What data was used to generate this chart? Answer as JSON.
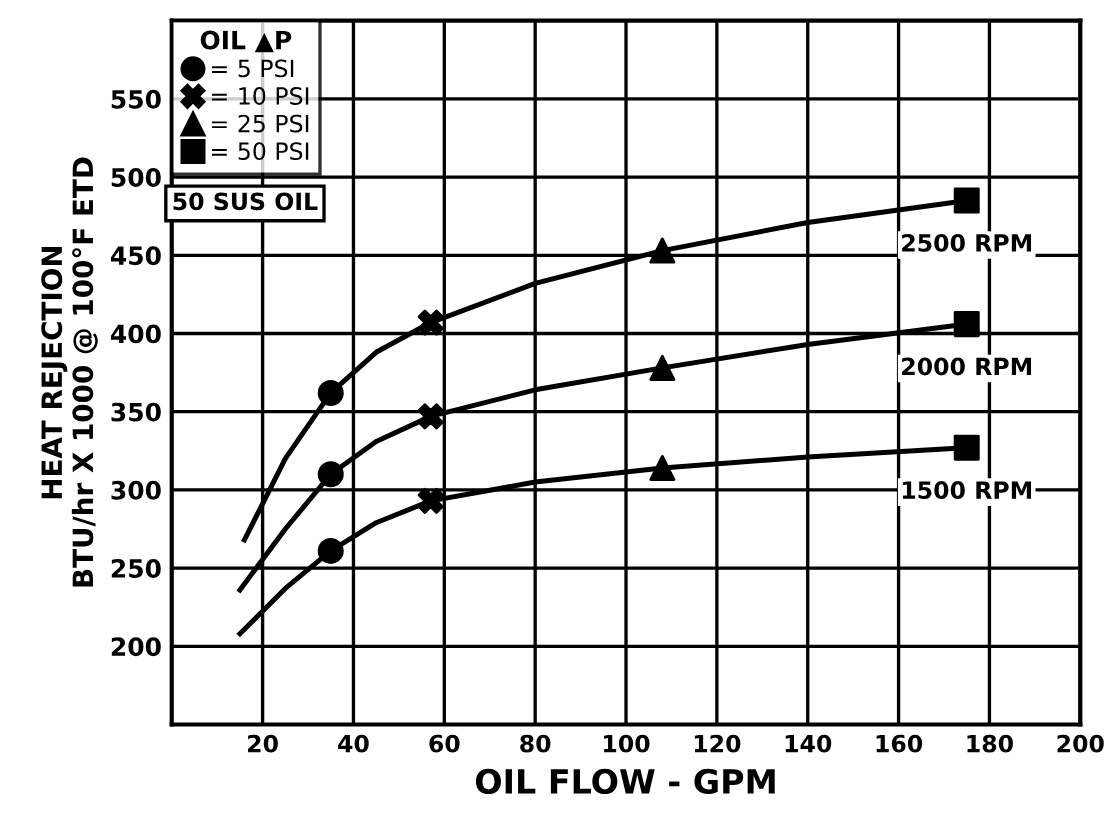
{
  "chart_data": {
    "type": "line",
    "xlabel": "OIL FLOW - GPM",
    "ylabel": "HEAT REJECTION\nBTU/hr X 1000 @ 100°F ETD",
    "xlim": [
      0,
      200
    ],
    "xticks": [
      20,
      40,
      60,
      80,
      100,
      120,
      140,
      160,
      180,
      200
    ],
    "ylim": [
      150,
      600
    ],
    "yticks": [
      200,
      250,
      300,
      350,
      400,
      450,
      500,
      550
    ],
    "grid": true,
    "legend": "top left",
    "legend_title": "OIL ▲P",
    "annotations": [
      "50 SUS OIL"
    ],
    "series": [
      {
        "name": "2500 RPM",
        "color": "#000000",
        "marker": "none",
        "x": [
          16,
          25,
          35,
          45,
          57,
          80,
          108,
          140,
          175
        ],
        "values": [
          268,
          320,
          362,
          388,
          407,
          432,
          453,
          471,
          485
        ]
      },
      {
        "name": "2000 RPM",
        "color": "#000000",
        "marker": "none",
        "x": [
          15,
          25,
          35,
          45,
          57,
          80,
          108,
          140,
          175
        ],
        "values": [
          236,
          275,
          310,
          331,
          347,
          364,
          378,
          393,
          406
        ]
      },
      {
        "name": "1500 RPM",
        "color": "#000000",
        "marker": "none",
        "x": [
          15,
          25,
          35,
          45,
          57,
          80,
          108,
          140,
          175
        ],
        "values": [
          208,
          237,
          261,
          279,
          293,
          305,
          314,
          321,
          327
        ]
      },
      {
        "type": "scatter",
        "name": "= 5 PSI",
        "color": "#000000",
        "marker": "circle",
        "x": [
          35,
          35,
          35
        ],
        "values": [
          362,
          310,
          261
        ]
      },
      {
        "type": "scatter",
        "name": "= 10 PSI",
        "color": "#000000",
        "marker": "cross",
        "x": [
          57,
          57,
          57
        ],
        "values": [
          407,
          347,
          293
        ]
      },
      {
        "type": "scatter",
        "name": "= 25 PSI",
        "color": "#000000",
        "marker": "triangle",
        "x": [
          108,
          108,
          108
        ],
        "values": [
          453,
          378,
          314
        ]
      },
      {
        "type": "scatter",
        "name": "= 50 PSI",
        "color": "#000000",
        "marker": "square",
        "x": [
          175,
          175,
          175
        ],
        "values": [
          485,
          406,
          327
        ]
      }
    ]
  }
}
